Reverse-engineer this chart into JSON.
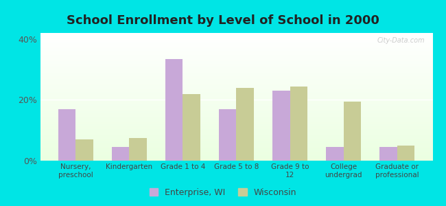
{
  "title": "School Enrollment by Level of School in 2000",
  "categories": [
    "Nursery,\npreschool",
    "Kindergarten",
    "Grade 1 to 4",
    "Grade 5 to 8",
    "Grade 9 to\n12",
    "College\nundergrad",
    "Graduate or\nprofessional"
  ],
  "enterprise_values": [
    17.0,
    4.5,
    33.5,
    17.0,
    23.0,
    4.5,
    4.5
  ],
  "wisconsin_values": [
    7.0,
    7.5,
    22.0,
    24.0,
    24.5,
    19.5,
    5.0
  ],
  "enterprise_color": "#c8a8d8",
  "wisconsin_color": "#c8cc96",
  "ylim": [
    0,
    42
  ],
  "yticks": [
    0,
    20,
    40
  ],
  "ytick_labels": [
    "0%",
    "20%",
    "40%"
  ],
  "background_color": "#00e5e5",
  "title_fontsize": 13,
  "legend_labels": [
    "Enterprise, WI",
    "Wisconsin"
  ],
  "watermark": "City-Data.com"
}
